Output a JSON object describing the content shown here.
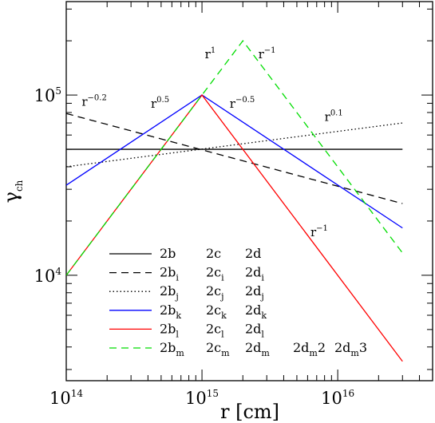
{
  "chart_data": {
    "type": "line",
    "xlabel": "r  [cm]",
    "ylabel": "γ",
    "ylabel_sub": "ch",
    "x_scale": "log",
    "y_scale": "log",
    "xlim": [
      100000000000000.0,
      5e+16
    ],
    "ylim": [
      2600,
      330000
    ],
    "x_ticks": [
      {
        "value": 100000000000000.0,
        "base": "10",
        "exp": "14"
      },
      {
        "value": 1000000000000000.0,
        "base": "10",
        "exp": "15"
      },
      {
        "value": 1e+16,
        "base": "10",
        "exp": "16"
      }
    ],
    "y_ticks": [
      {
        "value": 10000.0,
        "base": "10",
        "exp": "4"
      },
      {
        "value": 100000.0,
        "base": "10",
        "exp": "5"
      }
    ],
    "series": [
      {
        "key": "solid",
        "color": "#000000",
        "dash": "",
        "points": [
          [
            100000000000000.0,
            50000
          ],
          [
            3e+16,
            50000
          ]
        ]
      },
      {
        "key": "dashed",
        "color": "#000000",
        "dash": "9,6",
        "points": [
          [
            100000000000000.0,
            79000
          ],
          [
            3e+16,
            25000
          ]
        ]
      },
      {
        "key": "dotted",
        "color": "#000000",
        "dash": "1.5,3",
        "points": [
          [
            100000000000000.0,
            40000
          ],
          [
            3e+16,
            70000
          ]
        ]
      },
      {
        "key": "blue",
        "color": "#0000ff",
        "dash": "",
        "points": [
          [
            100000000000000.0,
            31600
          ],
          [
            1000000000000000.0,
            100000
          ],
          [
            3e+16,
            18300
          ]
        ]
      },
      {
        "key": "red",
        "color": "#ff0000",
        "dash": "",
        "points": [
          [
            100000000000000.0,
            10000
          ],
          [
            1000000000000000.0,
            100000
          ],
          [
            3e+16,
            3330
          ]
        ]
      },
      {
        "key": "green",
        "color": "#00dd00",
        "dash": "9,6",
        "points": [
          [
            100000000000000.0,
            10000
          ],
          [
            2000000000000000.0,
            200000
          ],
          [
            3e+16,
            13300
          ]
        ]
      }
    ],
    "annotations": [
      {
        "base": "r",
        "exp": "−0.2",
        "x": 130000000000000.0,
        "y": 87000
      },
      {
        "base": "r",
        "exp": "0.5",
        "x": 420000000000000.0,
        "y": 85000
      },
      {
        "base": "r",
        "exp": "1",
        "x": 1050000000000000.0,
        "y": 160000
      },
      {
        "base": "r",
        "exp": "−1",
        "x": 2600000000000000.0,
        "y": 160000
      },
      {
        "base": "r",
        "exp": "−0.5",
        "x": 1600000000000000.0,
        "y": 85000
      },
      {
        "base": "r",
        "exp": "0.1",
        "x": 8000000000000000.0,
        "y": 72000
      },
      {
        "base": "r",
        "exp": "−1",
        "x": 6300000000000000.0,
        "y": 16500
      }
    ],
    "legend": {
      "placement": "bottom-left",
      "rows": [
        {
          "series": "solid",
          "labels": [
            {
              "t": "2b",
              "s": ""
            },
            {
              "t": "2c",
              "s": ""
            },
            {
              "t": "2d",
              "s": ""
            }
          ]
        },
        {
          "series": "dashed",
          "labels": [
            {
              "t": "2b",
              "s": "i"
            },
            {
              "t": "2c",
              "s": "i"
            },
            {
              "t": "2d",
              "s": "i"
            }
          ]
        },
        {
          "series": "dotted",
          "labels": [
            {
              "t": "2b",
              "s": "j"
            },
            {
              "t": "2c",
              "s": "j"
            },
            {
              "t": "2d",
              "s": "j"
            }
          ]
        },
        {
          "series": "blue",
          "labels": [
            {
              "t": "2b",
              "s": "k"
            },
            {
              "t": "2c",
              "s": "k"
            },
            {
              "t": "2d",
              "s": "k"
            }
          ]
        },
        {
          "series": "red",
          "labels": [
            {
              "t": "2b",
              "s": "l"
            },
            {
              "t": "2c",
              "s": "l"
            },
            {
              "t": "2d",
              "s": "l"
            }
          ]
        },
        {
          "series": "green",
          "labels": [
            {
              "t": "2b",
              "s": "m"
            },
            {
              "t": "2c",
              "s": "m"
            },
            {
              "t": "2d",
              "s": "m"
            },
            {
              "t": "2d",
              "s": "m",
              "after": "2"
            },
            {
              "t": "2d",
              "s": "m",
              "after": "3"
            }
          ]
        }
      ]
    }
  }
}
